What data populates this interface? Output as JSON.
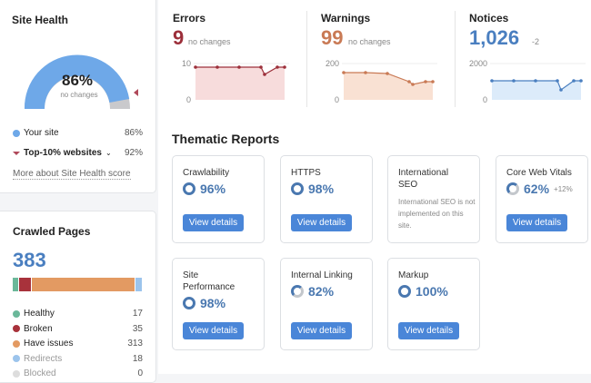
{
  "site_health": {
    "title": "Site Health",
    "value": "86%",
    "change": "no changes",
    "fraction": 0.86,
    "legend": [
      {
        "label": "Your site",
        "value": "86%",
        "color": "#6ea8e8"
      },
      {
        "label": "Top-10% websites",
        "value": "92%",
        "color": "#b0495a"
      }
    ],
    "link": "More about Site Health score"
  },
  "crawled": {
    "title": "Crawled Pages",
    "total": "383",
    "items": [
      {
        "label": "Healthy",
        "value": "17",
        "color": "#6bb89a"
      },
      {
        "label": "Broken",
        "value": "35",
        "color": "#a8323b"
      },
      {
        "label": "Have issues",
        "value": "313",
        "color": "#e39a62"
      },
      {
        "label": "Redirects",
        "value": "18",
        "color": "#9cc4ec"
      },
      {
        "label": "Blocked",
        "value": "0",
        "color": "#ddd"
      }
    ]
  },
  "metrics": [
    {
      "title": "Errors",
      "value": "9",
      "change": "no changes",
      "color": "#9c2f3a",
      "fill": "#f7dcdc",
      "ymax": "10",
      "ymin": "0",
      "max": 10,
      "points": [
        9,
        9,
        9,
        9,
        7,
        9,
        9
      ]
    },
    {
      "title": "Warnings",
      "value": "99",
      "change": "no changes",
      "color": "#c97a55",
      "fill": "#f9e1d3",
      "ymax": "200",
      "ymin": "0",
      "max": 200,
      "points": [
        150,
        150,
        145,
        100,
        85,
        100,
        100
      ]
    },
    {
      "title": "Notices",
      "value": "1,026",
      "change": "-2",
      "color": "#4a7fc0",
      "fill": "#dcebfa",
      "ymax": "2000",
      "ymin": "0",
      "max": 2000,
      "points": [
        1050,
        1050,
        1050,
        1050,
        550,
        1050,
        1050
      ]
    }
  ],
  "thematic": {
    "title": "Thematic Reports",
    "button": "View details",
    "cards": [
      {
        "title": "Crawlability",
        "value": "96%"
      },
      {
        "title": "HTTPS",
        "value": "98%"
      },
      {
        "title": "International SEO",
        "note": "International SEO is not implemented on this site."
      },
      {
        "title": "Core Web Vitals",
        "value": "62%",
        "change": "+12%"
      },
      {
        "title": "Site Performance",
        "value": "98%"
      },
      {
        "title": "Internal Linking",
        "value": "82%"
      },
      {
        "title": "Markup",
        "value": "100%"
      }
    ]
  }
}
